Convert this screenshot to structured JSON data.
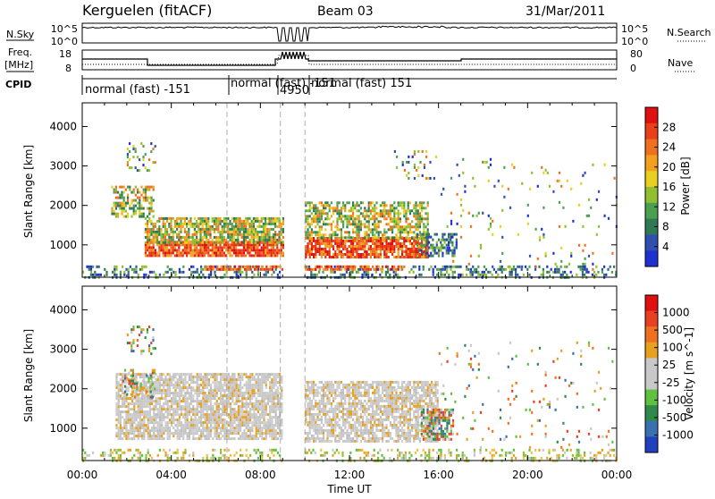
{
  "header": {
    "site": "Kerguelen (fitACF)",
    "beam": "Beam 03",
    "date": "31/Mar/2011"
  },
  "top_panels": {
    "nsky_label": "N.Sky",
    "nsky_ticks": [
      "10^5",
      "10^0"
    ],
    "nsearch_label": "N.Search",
    "nsearch_ticks": [
      "10^5",
      "10^0"
    ],
    "freq_label_1": "Freq.",
    "freq_label_2": "[MHz]",
    "freq_ticks": [
      "18",
      "8"
    ],
    "nave_label": "Nave",
    "nave_ticks": [
      "80",
      "0"
    ],
    "cpid_label": "CPID",
    "cpid_segments": [
      {
        "label": "normal (fast) -151",
        "start_h": 0.0,
        "end_h": 6.5
      },
      {
        "label": "normal (fast) -151",
        "start_h": 6.5,
        "end_h": 8.9
      },
      {
        "label": "4950",
        "start_h": 8.9,
        "end_h": 10.0
      },
      {
        "label": "normal (fast) 151",
        "start_h": 10.0,
        "end_h": 24.0
      }
    ]
  },
  "colorbars": {
    "power": {
      "label": "Power [dB]",
      "ticks": [
        "28",
        "24",
        "20",
        "16",
        "12",
        "8",
        "4"
      ],
      "colors": [
        "#2030d0",
        "#3050b0",
        "#2f7a52",
        "#4aa050",
        "#90c030",
        "#e8d020",
        "#f2a020",
        "#f07020",
        "#e84018",
        "#e01010"
      ]
    },
    "velocity": {
      "label": "Velocity [m s^-1]",
      "ticks": [
        "1000",
        "500",
        "100",
        "25",
        "-25",
        "-100",
        "-500",
        "-1000"
      ],
      "colors": [
        "#2040c0",
        "#3a70b0",
        "#2f8a4a",
        "#60c040",
        "#c8c8c8",
        "#c8c8c8",
        "#e8a020",
        "#f07020",
        "#e84020",
        "#e01010"
      ]
    }
  },
  "chart_data": [
    {
      "type": "heatmap",
      "title": "Power",
      "ylabel": "Slant Range [km]",
      "xlabel": "",
      "x_ticks": [],
      "y_ticks": [
        "1000",
        "2000",
        "3000",
        "4000"
      ],
      "xlim": [
        0,
        24
      ],
      "ylim": [
        180,
        4600
      ],
      "data_gap": [
        9.0,
        9.95
      ],
      "scatter_regions": [
        {
          "t0": 0.0,
          "t1": 24.0,
          "r0": 200,
          "r1": 480,
          "density": 0.35,
          "scheme": "power_low"
        },
        {
          "t0": 1.3,
          "t1": 3.2,
          "r0": 1700,
          "r1": 2500,
          "density": 0.55,
          "scheme": "power_mid"
        },
        {
          "t0": 2.8,
          "t1": 9.0,
          "r0": 700,
          "r1": 1100,
          "density": 0.9,
          "scheme": "power_high"
        },
        {
          "t0": 2.8,
          "t1": 9.0,
          "r0": 1050,
          "r1": 1700,
          "density": 0.75,
          "scheme": "power_mid"
        },
        {
          "t0": 10.0,
          "t1": 15.5,
          "r0": 700,
          "r1": 1200,
          "density": 0.85,
          "scheme": "power_high"
        },
        {
          "t0": 10.0,
          "t1": 15.5,
          "r0": 1150,
          "r1": 2100,
          "density": 0.6,
          "scheme": "power_mid"
        },
        {
          "t0": 15.0,
          "t1": 16.8,
          "r0": 700,
          "r1": 1300,
          "density": 0.5,
          "scheme": "power_low"
        },
        {
          "t0": 5.5,
          "t1": 14.5,
          "r0": 360,
          "r1": 480,
          "density": 0.7,
          "scheme": "power_high"
        },
        {
          "t0": 2.0,
          "t1": 3.3,
          "r0": 2900,
          "r1": 3600,
          "density": 0.25,
          "scheme": "power_mix"
        },
        {
          "t0": 14.0,
          "t1": 16.0,
          "r0": 2700,
          "r1": 3400,
          "density": 0.12,
          "scheme": "power_mix"
        },
        {
          "t0": 16.0,
          "t1": 24.0,
          "r0": 400,
          "r1": 3200,
          "density": 0.03,
          "scheme": "power_mix"
        }
      ]
    },
    {
      "type": "heatmap",
      "title": "Velocity",
      "ylabel": "Slant Range [km]",
      "xlabel": "Time UT",
      "x_ticks": [
        "00:00",
        "04:00",
        "08:00",
        "12:00",
        "16:00",
        "20:00",
        "00:00"
      ],
      "y_ticks": [
        "1000",
        "2000",
        "3000",
        "4000"
      ],
      "xlim": [
        0,
        24
      ],
      "ylim": [
        180,
        4600
      ],
      "data_gap": [
        9.0,
        9.95
      ],
      "scatter_regions": [
        {
          "t0": 0.0,
          "t1": 24.0,
          "r0": 200,
          "r1": 480,
          "density": 0.3,
          "scheme": "vel_low"
        },
        {
          "t0": 1.5,
          "t1": 9.0,
          "r0": 700,
          "r1": 2400,
          "density": 0.8,
          "scheme": "vel_grey"
        },
        {
          "t0": 10.0,
          "t1": 16.0,
          "r0": 700,
          "r1": 2200,
          "density": 0.75,
          "scheme": "vel_grey"
        },
        {
          "t0": 15.2,
          "t1": 16.7,
          "r0": 700,
          "r1": 1500,
          "density": 0.6,
          "scheme": "vel_mix"
        },
        {
          "t0": 1.8,
          "t1": 3.3,
          "r0": 1800,
          "r1": 2500,
          "density": 0.3,
          "scheme": "vel_mix"
        },
        {
          "t0": 2.0,
          "t1": 3.3,
          "r0": 2900,
          "r1": 3600,
          "density": 0.25,
          "scheme": "vel_mix"
        },
        {
          "t0": 16.0,
          "t1": 24.0,
          "r0": 400,
          "r1": 3200,
          "density": 0.03,
          "scheme": "vel_mix"
        }
      ]
    }
  ]
}
